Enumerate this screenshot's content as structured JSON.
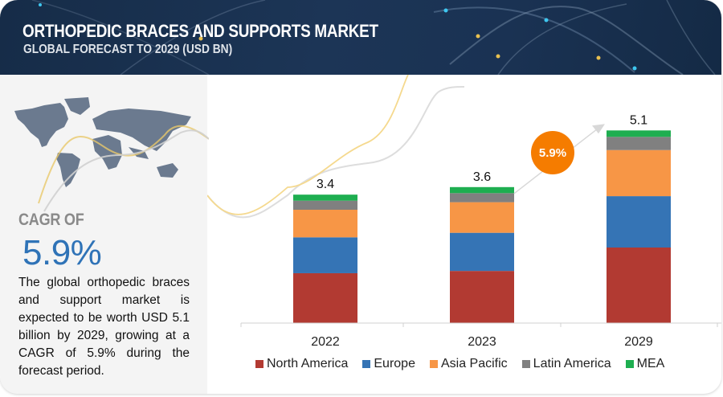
{
  "header": {
    "title": "ORTHOPEDIC BRACES AND SUPPORTS MARKET",
    "subtitle": "GLOBAL FORECAST TO 2029 (USD BN)"
  },
  "summary": {
    "cagr_label": "CAGR OF",
    "cagr_value": "5.9%",
    "description": "The global orthopedic braces and support market is expected to be worth USD 5.1 billion by 2029, growing at a CAGR of 5.9% during the forecast period.",
    "map_icon": "world-map-icon"
  },
  "chart_data": {
    "type": "bar",
    "stacked": true,
    "title": "Orthopedic Braces and Supports Market, Global Forecast to 2029 (USD BN)",
    "xlabel": "",
    "ylabel": "",
    "categories": [
      "2022",
      "2023",
      "2029"
    ],
    "totals": [
      3.4,
      3.6,
      5.1
    ],
    "total_labels": [
      "3.4",
      "3.6",
      "5.1"
    ],
    "series": [
      {
        "name": "North America",
        "color": "#b23a32",
        "values": [
          1.32,
          1.38,
          2.0
        ]
      },
      {
        "name": "Europe",
        "color": "#3574b5",
        "values": [
          0.95,
          1.01,
          1.36
        ]
      },
      {
        "name": "Asia Pacific",
        "color": "#f79646",
        "values": [
          0.73,
          0.81,
          1.22
        ]
      },
      {
        "name": "Latin America",
        "color": "#808080",
        "values": [
          0.24,
          0.24,
          0.35
        ]
      },
      {
        "name": "MEA",
        "color": "#1eae50",
        "values": [
          0.16,
          0.16,
          0.17
        ]
      }
    ],
    "annotation": {
      "label": "5.9%",
      "type": "cagr-bubble",
      "color": "#f57c00",
      "from": "2023",
      "to": "2029"
    },
    "legend": "bottom",
    "grid": false,
    "ylim": [
      0,
      5.1
    ]
  }
}
